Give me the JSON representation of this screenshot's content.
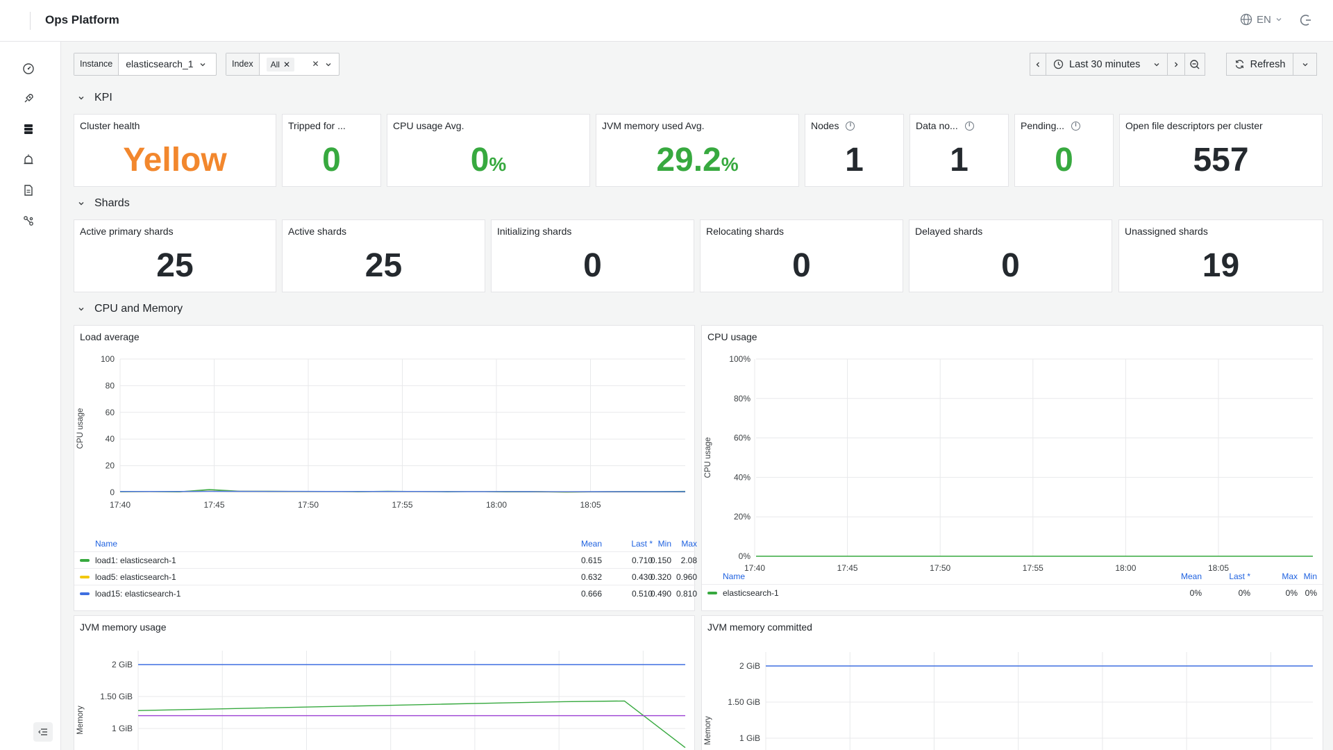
{
  "app": {
    "title": "Ops Platform",
    "lang": "EN"
  },
  "nav": [
    "dashboard-icon",
    "rocket-icon",
    "database-icon",
    "alarm-icon",
    "document-icon",
    "share-icon"
  ],
  "filters": {
    "instance_label": "Instance",
    "instance_value": "elasticsearch_1",
    "index_label": "Index",
    "index_chip": "All"
  },
  "time": {
    "range": "Last 30 minutes",
    "refresh": "Refresh"
  },
  "sections": {
    "kpi": "KPI",
    "shards": "Shards",
    "cpu_mem": "CPU and Memory"
  },
  "kpi": [
    {
      "title": "Cluster health",
      "value": "Yellow",
      "unit": "",
      "color": "#f2872d",
      "info": false
    },
    {
      "title": "Tripped for ...",
      "value": "0",
      "unit": "",
      "color": "#37a93f",
      "info": false
    },
    {
      "title": "CPU usage Avg.",
      "value": "0",
      "unit": "%",
      "color": "#37a93f",
      "info": false
    },
    {
      "title": "JVM memory used Avg.",
      "value": "29.2",
      "unit": "%",
      "color": "#37a93f",
      "info": false
    },
    {
      "title": "Nodes",
      "value": "1",
      "unit": "",
      "color": "#24292e",
      "info": true
    },
    {
      "title": "Data no...",
      "value": "1",
      "unit": "",
      "color": "#24292e",
      "info": true
    },
    {
      "title": "Pending...",
      "value": "0",
      "unit": "",
      "color": "#37a93f",
      "info": true
    },
    {
      "title": "Open file descriptors per cluster",
      "value": "557",
      "unit": "",
      "color": "#24292e",
      "info": false
    }
  ],
  "shards": [
    {
      "title": "Active primary shards",
      "value": "25"
    },
    {
      "title": "Active shards",
      "value": "25"
    },
    {
      "title": "Initializing shards",
      "value": "0"
    },
    {
      "title": "Relocating shards",
      "value": "0"
    },
    {
      "title": "Delayed shards",
      "value": "0"
    },
    {
      "title": "Unassigned shards",
      "value": "19"
    }
  ],
  "panels": {
    "load": "Load average",
    "cpu": "CPU usage",
    "jvm_usage": "JVM memory usage",
    "jvm_committed": "JVM memory committed"
  },
  "legend_headers": {
    "name": "Name",
    "mean": "Mean",
    "last": "Last *",
    "max": "Max",
    "min": "Min"
  },
  "load_legend": [
    {
      "name": "load1: elasticsearch-1",
      "mean": "0.615",
      "last": "0.710",
      "max": "2.08",
      "min": "0.150",
      "color": "#37a93f"
    },
    {
      "name": "load5: elasticsearch-1",
      "mean": "0.632",
      "last": "0.430",
      "max": "0.960",
      "min": "0.320",
      "color": "#f2c80f"
    },
    {
      "name": "load15: elasticsearch-1",
      "mean": "0.666",
      "last": "0.510",
      "max": "0.810",
      "min": "0.490",
      "color": "#3f6fe0"
    }
  ],
  "cpu_legend": [
    {
      "name": "elasticsearch-1",
      "mean": "0%",
      "last": "0%",
      "max": "0%",
      "min": "0%",
      "color": "#37a93f"
    }
  ],
  "chart_data": [
    {
      "type": "line",
      "title": "Load average",
      "ylabel": "CPU usage",
      "ylim": [
        0,
        100
      ],
      "yticks": [
        "100",
        "80",
        "60",
        "40",
        "20",
        "0"
      ],
      "xticks": [
        "17:40",
        "17:45",
        "17:50",
        "17:55",
        "18:00",
        "18:05"
      ],
      "series": [
        {
          "name": "load1: elasticsearch-1",
          "color": "#37a93f",
          "values": [
            0.5,
            0.6,
            0.4,
            2.08,
            0.9,
            0.8,
            0.6,
            0.7,
            0.5,
            0.8,
            0.6,
            0.5,
            0.7,
            0.4,
            0.5,
            0.15,
            0.4,
            0.6,
            0.5,
            0.71
          ]
        },
        {
          "name": "load5: elasticsearch-1",
          "color": "#f2c80f",
          "values": [
            0.6,
            0.62,
            0.6,
            0.96,
            0.8,
            0.75,
            0.7,
            0.7,
            0.65,
            0.7,
            0.6,
            0.6,
            0.62,
            0.55,
            0.5,
            0.32,
            0.4,
            0.45,
            0.43,
            0.43
          ]
        },
        {
          "name": "load15: elasticsearch-1",
          "color": "#3f6fe0",
          "values": [
            0.7,
            0.7,
            0.68,
            0.81,
            0.78,
            0.75,
            0.72,
            0.7,
            0.7,
            0.68,
            0.66,
            0.64,
            0.63,
            0.6,
            0.58,
            0.49,
            0.52,
            0.5,
            0.51,
            0.51
          ]
        }
      ]
    },
    {
      "type": "line",
      "title": "CPU usage",
      "ylabel": "CPU usage",
      "ylim": [
        0,
        100
      ],
      "yticks": [
        "100%",
        "80%",
        "60%",
        "40%",
        "20%",
        "0%"
      ],
      "xticks": [
        "17:40",
        "17:45",
        "17:50",
        "17:55",
        "18:00",
        "18:05"
      ],
      "series": [
        {
          "name": "elasticsearch-1",
          "color": "#37a93f",
          "values": [
            0,
            0,
            0,
            0,
            0,
            0,
            0,
            0,
            0,
            0
          ]
        }
      ]
    },
    {
      "type": "line",
      "title": "JVM memory usage",
      "ylabel": "Memory",
      "yticks": [
        "2 GiB",
        "1.50 GiB",
        "1 GiB"
      ],
      "series": [
        {
          "color": "#3f6fe0",
          "values": [
            2.0,
            2.0,
            2.0,
            2.0,
            2.0,
            2.0,
            2.0,
            2.0,
            2.0,
            2.0
          ]
        },
        {
          "color": "#37a93f",
          "values": [
            1.28,
            1.3,
            1.32,
            1.34,
            1.36,
            1.38,
            1.4,
            1.42,
            1.43,
            0.7
          ]
        },
        {
          "color": "#9b3fd3",
          "values": [
            1.2,
            1.2,
            1.2,
            1.2,
            1.2,
            1.2,
            1.2,
            1.2,
            1.2,
            1.2
          ]
        }
      ]
    },
    {
      "type": "line",
      "title": "JVM memory committed",
      "ylabel": "Memory",
      "yticks": [
        "2 GiB",
        "1.50 GiB",
        "1 GiB"
      ],
      "series": [
        {
          "color": "#3f6fe0",
          "values": [
            2.0,
            2.0,
            2.0,
            2.0,
            2.0,
            2.0,
            2.0,
            2.0,
            2.0,
            2.0
          ]
        }
      ]
    }
  ]
}
